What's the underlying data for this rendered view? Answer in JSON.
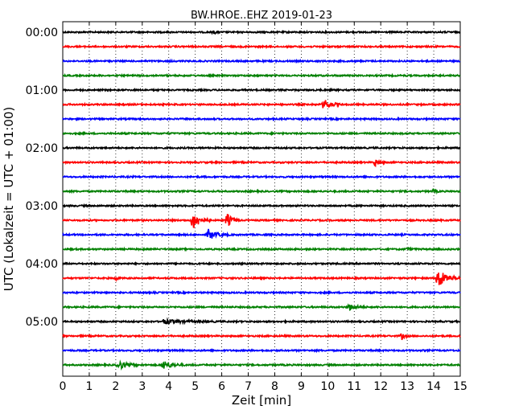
{
  "chart_data": {
    "type": "line",
    "title": "BW.HROE..EHZ 2019-01-23",
    "xlabel": "Zeit  [min]",
    "ylabel": "UTC (Lokalzeit = UTC + 01:00)",
    "xlim": [
      0,
      15
    ],
    "x_ticks": [
      "0",
      "1",
      "2",
      "3",
      "4",
      "5",
      "6",
      "7",
      "8",
      "9",
      "10",
      "11",
      "12",
      "13",
      "14",
      "15"
    ],
    "y_ticks": [
      "00:00",
      "01:00",
      "02:00",
      "03:00",
      "04:00",
      "05:00"
    ],
    "grid": "vertical dotted",
    "colors": [
      "#000000",
      "#ff0000",
      "#0000ff",
      "#008000"
    ],
    "series": [
      {
        "start": "00:00",
        "color": "#000000",
        "events": [
          {
            "t": 5.7,
            "amp": 0.2,
            "dur": 0.3
          }
        ]
      },
      {
        "start": "00:15",
        "color": "#ff0000",
        "events": []
      },
      {
        "start": "00:30",
        "color": "#0000ff",
        "events": []
      },
      {
        "start": "00:45",
        "color": "#008000",
        "events": []
      },
      {
        "start": "01:00",
        "color": "#000000",
        "events": []
      },
      {
        "start": "01:15",
        "color": "#ff0000",
        "events": [
          {
            "t": 9.85,
            "amp": 0.8,
            "dur": 0.7
          }
        ]
      },
      {
        "start": "01:30",
        "color": "#0000ff",
        "events": []
      },
      {
        "start": "01:45",
        "color": "#008000",
        "events": []
      },
      {
        "start": "02:00",
        "color": "#000000",
        "events": []
      },
      {
        "start": "02:15",
        "color": "#ff0000",
        "events": [
          {
            "t": 11.8,
            "amp": 0.6,
            "dur": 0.4
          }
        ]
      },
      {
        "start": "02:30",
        "color": "#0000ff",
        "events": []
      },
      {
        "start": "02:45",
        "color": "#008000",
        "events": [
          {
            "t": 14.0,
            "amp": 0.4,
            "dur": 0.2
          }
        ]
      },
      {
        "start": "03:00",
        "color": "#000000",
        "events": []
      },
      {
        "start": "03:15",
        "color": "#ff0000",
        "events": [
          {
            "t": 4.9,
            "amp": 1.5,
            "dur": 0.7
          },
          {
            "t": 6.2,
            "amp": 1.1,
            "dur": 0.5
          }
        ]
      },
      {
        "start": "03:30",
        "color": "#0000ff",
        "events": [
          {
            "t": 5.5,
            "amp": 0.8,
            "dur": 0.8
          }
        ]
      },
      {
        "start": "03:45",
        "color": "#008000",
        "events": [
          {
            "t": 13.0,
            "amp": 0.2,
            "dur": 0.4
          }
        ]
      },
      {
        "start": "04:00",
        "color": "#000000",
        "events": []
      },
      {
        "start": "04:15",
        "color": "#ff0000",
        "events": [
          {
            "t": 2.0,
            "amp": 0.4,
            "dur": 0.2
          },
          {
            "t": 14.15,
            "amp": 1.6,
            "dur": 0.9
          }
        ]
      },
      {
        "start": "04:30",
        "color": "#0000ff",
        "events": []
      },
      {
        "start": "04:45",
        "color": "#008000",
        "events": [
          {
            "t": 10.8,
            "amp": 0.5,
            "dur": 0.7
          }
        ]
      },
      {
        "start": "05:00",
        "color": "#000000",
        "events": [
          {
            "t": 3.8,
            "amp": 0.3,
            "dur": 2.2
          }
        ]
      },
      {
        "start": "05:15",
        "color": "#ff0000",
        "events": [
          {
            "t": 12.8,
            "amp": 0.5,
            "dur": 0.3
          }
        ]
      },
      {
        "start": "05:30",
        "color": "#0000ff",
        "events": []
      },
      {
        "start": "05:45",
        "color": "#008000",
        "events": [
          {
            "t": 2.1,
            "amp": 0.7,
            "dur": 0.8
          },
          {
            "t": 3.8,
            "amp": 0.7,
            "dur": 0.8
          }
        ]
      }
    ]
  }
}
